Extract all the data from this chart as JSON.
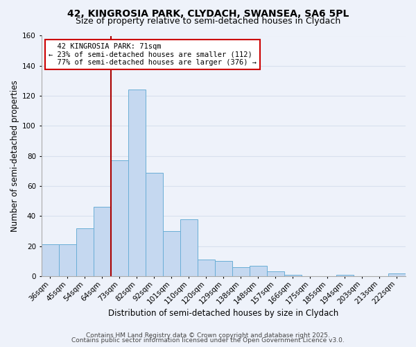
{
  "title_line1": "42, KINGROSIA PARK, CLYDACH, SWANSEA, SA6 5PL",
  "title_line2": "Size of property relative to semi-detached houses in Clydach",
  "xlabel": "Distribution of semi-detached houses by size in Clydach",
  "ylabel": "Number of semi-detached properties",
  "categories": [
    "36sqm",
    "45sqm",
    "54sqm",
    "64sqm",
    "73sqm",
    "82sqm",
    "92sqm",
    "101sqm",
    "110sqm",
    "120sqm",
    "129sqm",
    "138sqm",
    "148sqm",
    "157sqm",
    "166sqm",
    "175sqm",
    "185sqm",
    "194sqm",
    "203sqm",
    "213sqm",
    "222sqm"
  ],
  "values": [
    21,
    21,
    32,
    46,
    77,
    124,
    69,
    30,
    38,
    11,
    10,
    6,
    7,
    3,
    1,
    0,
    0,
    1,
    0,
    0,
    2
  ],
  "bar_color": "#c5d8f0",
  "bar_edge_color": "#6aaed6",
  "property_label": "42 KINGROSIA PARK: 71sqm",
  "smaller_pct": "23%",
  "smaller_count": 112,
  "larger_pct": "77%",
  "larger_count": 376,
  "annotation_box_color": "#ffffff",
  "annotation_box_edge": "#cc0000",
  "vline_color": "#aa0000",
  "ylim": [
    0,
    160
  ],
  "yticks": [
    0,
    20,
    40,
    60,
    80,
    100,
    120,
    140,
    160
  ],
  "footer_line1": "Contains HM Land Registry data © Crown copyright and database right 2025.",
  "footer_line2": "Contains public sector information licensed under the Open Government Licence v3.0.",
  "bg_color": "#eef2fa",
  "plot_bg_color": "#eef2fa",
  "grid_color": "#d8e0ee",
  "title_fontsize": 10,
  "subtitle_fontsize": 9,
  "axis_label_fontsize": 8.5,
  "tick_fontsize": 7.5,
  "annotation_fontsize": 7.5,
  "footer_fontsize": 6.5
}
